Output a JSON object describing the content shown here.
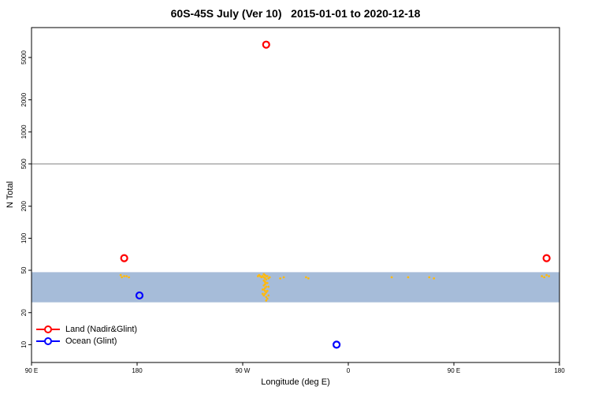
{
  "title": "60S-45S July (Ver 10)   2015-01-01 to 2020-12-18",
  "chart_data": {
    "type": "scatter",
    "title": "60S-45S July (Ver 10)   2015-01-01 to 2020-12-18",
    "xlabel": "Longitude (deg E)",
    "ylabel": "N Total",
    "yscale": "log",
    "xlim": [
      90,
      540
    ],
    "ylim": [
      6.8,
      9550
    ],
    "x_ticks": [
      {
        "pos": 90,
        "label": "90 E"
      },
      {
        "pos": 180,
        "label": "180"
      },
      {
        "pos": 270,
        "label": "90 W"
      },
      {
        "pos": 360,
        "label": "0"
      },
      {
        "pos": 450,
        "label": "90 E"
      },
      {
        "pos": 540,
        "label": "180"
      }
    ],
    "y_ticks": [
      10,
      20,
      50,
      100,
      200,
      500,
      1000,
      2000,
      5000
    ],
    "hline": {
      "y": 500,
      "color": "#7F7F7F"
    },
    "band": {
      "ymin": 25,
      "ymax": 48,
      "color": "#A6BCD9"
    },
    "map_dots_color": "#FFB90F",
    "map_dots": [
      [
        288,
        46
      ],
      [
        289,
        45
      ],
      [
        287,
        44
      ],
      [
        290,
        44
      ],
      [
        288,
        43
      ],
      [
        289,
        42
      ],
      [
        290,
        41
      ],
      [
        288,
        40
      ],
      [
        289,
        39
      ],
      [
        290,
        38
      ],
      [
        289,
        37
      ],
      [
        288,
        36
      ],
      [
        290,
        35
      ],
      [
        289,
        34
      ],
      [
        288,
        33
      ],
      [
        289,
        32
      ],
      [
        290,
        31
      ],
      [
        289,
        30
      ],
      [
        288,
        29
      ],
      [
        290,
        28
      ],
      [
        291,
        27
      ],
      [
        290,
        26
      ],
      [
        292,
        29
      ],
      [
        291,
        32
      ],
      [
        292,
        35
      ],
      [
        291,
        38
      ],
      [
        292,
        42
      ],
      [
        286,
        43
      ],
      [
        285,
        44
      ],
      [
        284,
        45
      ],
      [
        283,
        44
      ],
      [
        287,
        30
      ],
      [
        287,
        33
      ],
      [
        291,
        44
      ],
      [
        293,
        43
      ],
      [
        302,
        42
      ],
      [
        305,
        43
      ],
      [
        324,
        43
      ],
      [
        326,
        42
      ],
      [
        397,
        43
      ],
      [
        411,
        43
      ],
      [
        429,
        43
      ],
      [
        433,
        42
      ],
      [
        166,
        45
      ],
      [
        167,
        43
      ],
      [
        169,
        44
      ],
      [
        171,
        44
      ],
      [
        173,
        43
      ],
      [
        525,
        44
      ],
      [
        527,
        43
      ],
      [
        529,
        45
      ],
      [
        531,
        44
      ]
    ],
    "series": [
      {
        "name": "Land (Nadir&Glint)",
        "color": "#FF0000",
        "points": [
          {
            "lon": 290,
            "n": 6600
          },
          {
            "lon": 169,
            "n": 65
          },
          {
            "lon": 529,
            "n": 65
          }
        ]
      },
      {
        "name": "Ocean (Glint)",
        "color": "#0000FF",
        "points": [
          {
            "lon": 182,
            "n": 29
          },
          {
            "lon": 350,
            "n": 10
          }
        ]
      }
    ],
    "legend": {
      "position": "bottom-left",
      "items": [
        {
          "label": "Land (Nadir&Glint)",
          "color": "#FF0000"
        },
        {
          "label": "Ocean (Glint)",
          "color": "#0000FF"
        }
      ]
    }
  }
}
